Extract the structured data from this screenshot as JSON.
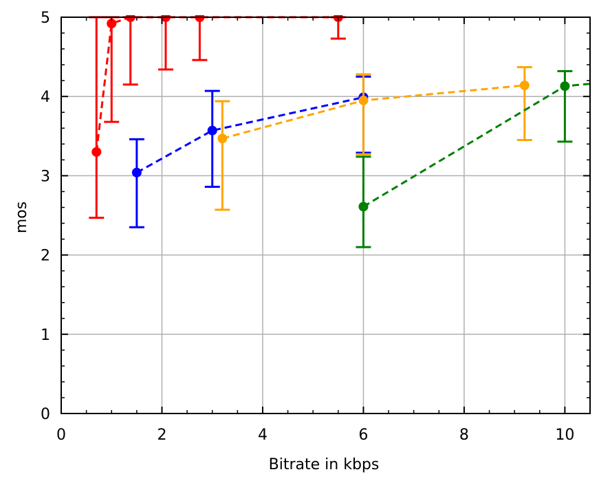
{
  "chart_data": {
    "type": "line",
    "title": "",
    "xlabel": "Bitrate in kbps",
    "ylabel": "mos",
    "xlim": [
      0,
      10.5
    ],
    "ylim": [
      0,
      5
    ],
    "xticks": [
      0,
      2,
      4,
      6,
      8,
      10
    ],
    "yticks": [
      0,
      1,
      2,
      3,
      4,
      5
    ],
    "grid": true,
    "line_style": "dashed",
    "error_bars": true,
    "series": [
      {
        "color": "#ff0000",
        "x": [
          0.7,
          1.0,
          1.375,
          2.075,
          2.75,
          5.5
        ],
        "y": [
          3.3,
          4.92,
          5.0,
          5.0,
          5.0,
          5.0
        ],
        "err_low": [
          2.47,
          3.68,
          4.15,
          4.34,
          4.46,
          4.73
        ],
        "err_high": [
          5.0,
          5.0,
          5.0,
          5.0,
          5.0,
          5.0
        ]
      },
      {
        "color": "#0000ff",
        "x": [
          1.5,
          3.0,
          6.0
        ],
        "y": [
          3.04,
          3.57,
          3.99
        ],
        "err_low": [
          2.35,
          2.86,
          3.29
        ],
        "err_high": [
          3.46,
          4.07,
          4.25
        ]
      },
      {
        "color": "#ffa500",
        "x": [
          3.2,
          6.0,
          9.2
        ],
        "y": [
          3.47,
          3.95,
          4.14
        ],
        "err_low": [
          2.57,
          3.27,
          3.45
        ],
        "err_high": [
          3.94,
          4.28,
          4.37
        ]
      },
      {
        "color": "#008000",
        "x": [
          6.0,
          10.0,
          10.5
        ],
        "y": [
          2.61,
          4.13,
          4.16
        ],
        "err_low": [
          2.1,
          3.43,
          null
        ],
        "err_high": [
          3.24,
          4.32,
          null
        ]
      }
    ]
  }
}
